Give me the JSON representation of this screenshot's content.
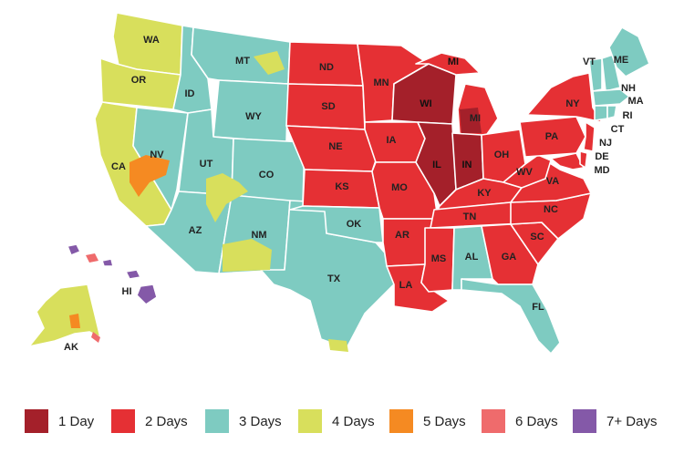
{
  "colors": {
    "d1": "#a4202a",
    "d2": "#e53034",
    "d3": "#7ecbc1",
    "d4": "#d8df5c",
    "d5": "#f58a22",
    "d6": "#ef6b6c",
    "d7": "#8459a8"
  },
  "legend": [
    {
      "label": "1 Day",
      "color_key": "d1"
    },
    {
      "label": "2 Days",
      "color_key": "d2"
    },
    {
      "label": "3 Days",
      "color_key": "d3"
    },
    {
      "label": "4 Days",
      "color_key": "d4"
    },
    {
      "label": "5 Days",
      "color_key": "d5"
    },
    {
      "label": "6 Days",
      "color_key": "d6"
    },
    {
      "label": "7+ Days",
      "color_key": "d7"
    }
  ],
  "states": {
    "WA": {
      "label": "WA",
      "days": "4"
    },
    "OR": {
      "label": "OR",
      "days": "4"
    },
    "CA": {
      "label": "CA",
      "days": "4"
    },
    "NV": {
      "label": "NV",
      "days": "3"
    },
    "ID": {
      "label": "ID",
      "days": "3"
    },
    "MT": {
      "label": "MT",
      "days": "3"
    },
    "WY": {
      "label": "WY",
      "days": "3"
    },
    "UT": {
      "label": "UT",
      "days": "3"
    },
    "CO": {
      "label": "CO",
      "days": "3"
    },
    "AZ": {
      "label": "AZ",
      "days": "3"
    },
    "NM": {
      "label": "NM",
      "days": "3"
    },
    "TX": {
      "label": "TX",
      "days": "3"
    },
    "ND": {
      "label": "ND",
      "days": "2"
    },
    "SD": {
      "label": "SD",
      "days": "2"
    },
    "NE": {
      "label": "NE",
      "days": "2"
    },
    "KS": {
      "label": "KS",
      "days": "2"
    },
    "OK": {
      "label": "OK",
      "days": "3"
    },
    "MN": {
      "label": "MN",
      "days": "2"
    },
    "IA": {
      "label": "IA",
      "days": "2"
    },
    "MO": {
      "label": "MO",
      "days": "2"
    },
    "AR": {
      "label": "AR",
      "days": "2"
    },
    "LA": {
      "label": "LA",
      "days": "2"
    },
    "WI": {
      "label": "WI",
      "days": "1"
    },
    "IL": {
      "label": "IL",
      "days": "1"
    },
    "MI": {
      "label": "MI",
      "days": "2"
    },
    "IN": {
      "label": "IN",
      "days": "1"
    },
    "OH": {
      "label": "OH",
      "days": "2"
    },
    "KY": {
      "label": "KY",
      "days": "2"
    },
    "TN": {
      "label": "TN",
      "days": "2"
    },
    "MS": {
      "label": "MS",
      "days": "2"
    },
    "AL": {
      "label": "AL",
      "days": "3"
    },
    "GA": {
      "label": "GA",
      "days": "2"
    },
    "FL": {
      "label": "FL",
      "days": "3"
    },
    "SC": {
      "label": "SC",
      "days": "2"
    },
    "NC": {
      "label": "NC",
      "days": "2"
    },
    "VA": {
      "label": "VA",
      "days": "2"
    },
    "WV": {
      "label": "WV",
      "days": "2"
    },
    "PA": {
      "label": "PA",
      "days": "2"
    },
    "NY": {
      "label": "NY",
      "days": "2"
    },
    "VT": {
      "label": "VT",
      "days": "3"
    },
    "NH": {
      "label": "NH",
      "days": "3"
    },
    "ME": {
      "label": "ME",
      "days": "3"
    },
    "MA": {
      "label": "MA",
      "days": "3"
    },
    "RI": {
      "label": "RI",
      "days": "3"
    },
    "CT": {
      "label": "CT",
      "days": "3"
    },
    "NJ": {
      "label": "NJ",
      "days": "2"
    },
    "DE": {
      "label": "DE",
      "days": "2"
    },
    "MD": {
      "label": "MD",
      "days": "2"
    },
    "AK": {
      "label": "AK",
      "days": "4"
    },
    "HI": {
      "label": "HI",
      "days": "7+"
    }
  }
}
